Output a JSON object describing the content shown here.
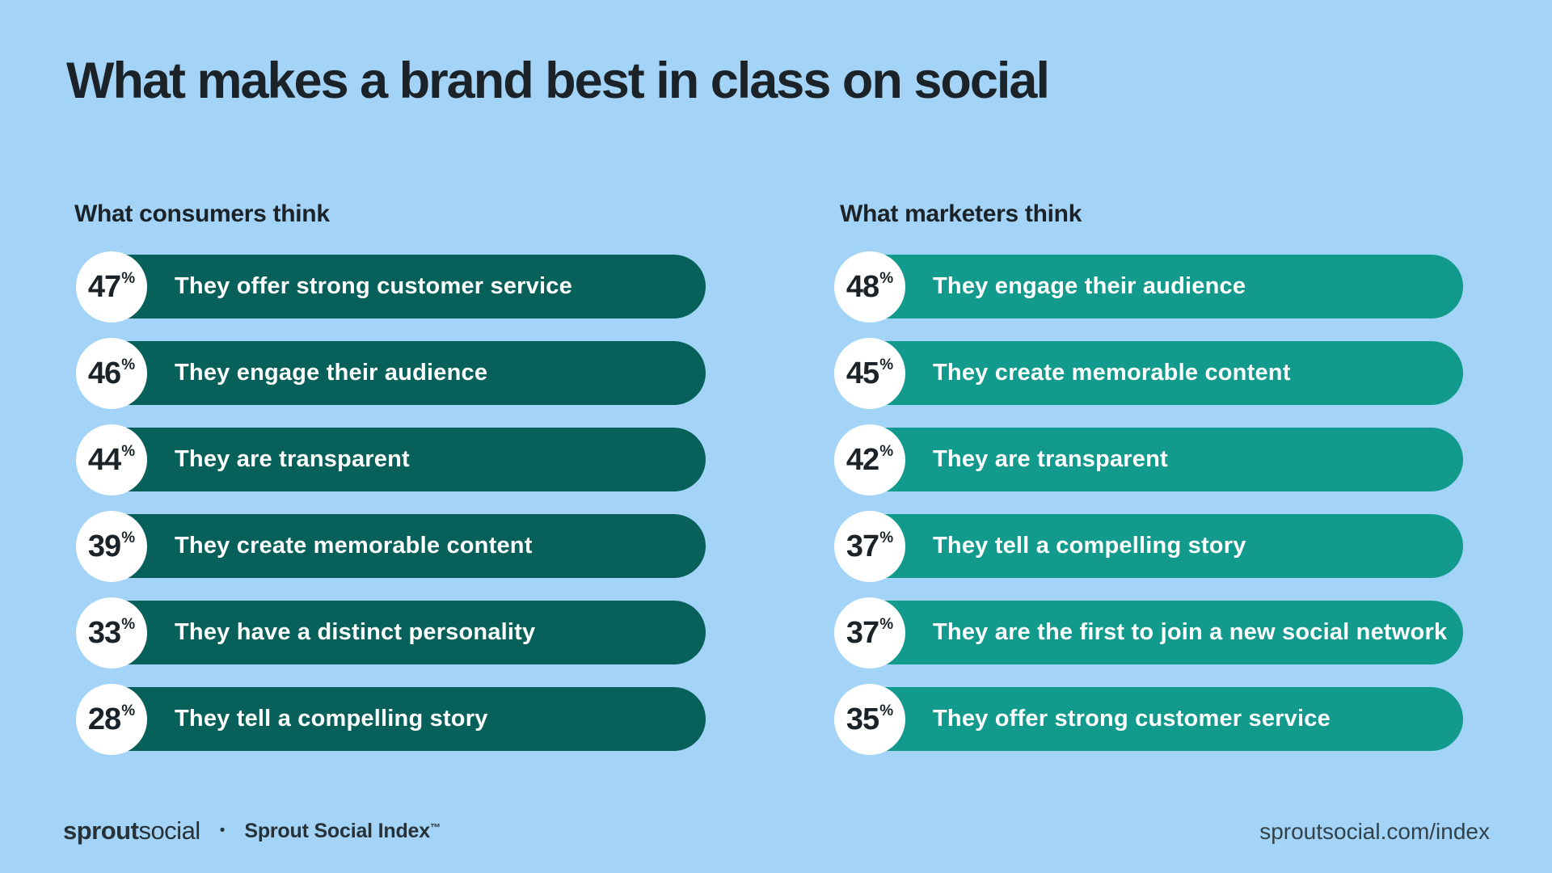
{
  "colors": {
    "bg": "#A3D3F7",
    "ink": "#1B2328",
    "bar_dark": "#07615A",
    "bar_light": "#129A8C",
    "footer_ink": "#263238",
    "url_ink": "#31424B"
  },
  "header": {
    "title": "What makes a brand best in class on social"
  },
  "percent_symbol": "%",
  "columns": [
    {
      "heading": "What consumers think",
      "items": [
        {
          "value": "47",
          "label": "They offer strong customer service"
        },
        {
          "value": "46",
          "label": "They engage their audience"
        },
        {
          "value": "44",
          "label": "They are transparent"
        },
        {
          "value": "39",
          "label": "They create memorable content"
        },
        {
          "value": "33",
          "label": "They have a distinct personality"
        },
        {
          "value": "28",
          "label": "They tell a compelling story"
        }
      ]
    },
    {
      "heading": "What marketers think",
      "items": [
        {
          "value": "48",
          "label": "They engage their audience"
        },
        {
          "value": "45",
          "label": "They create memorable content"
        },
        {
          "value": "42",
          "label": "They are transparent"
        },
        {
          "value": "37",
          "label": "They tell a compelling story"
        },
        {
          "value": "37",
          "label": "They are the first to join a new social network"
        },
        {
          "value": "35",
          "label": "They offer strong customer service"
        }
      ]
    }
  ],
  "chart_data": [
    {
      "type": "bar",
      "title": "What consumers think",
      "categories": [
        "They offer strong customer service",
        "They engage their audience",
        "They are transparent",
        "They create memorable content",
        "They have a distinct personality",
        "They tell a compelling story"
      ],
      "values": [
        47,
        46,
        44,
        39,
        33,
        28
      ],
      "unit": "%",
      "bar_color": "#07615A",
      "layout": "horizontal pill bars of equal visual length, white circular value badge at left of each bar"
    },
    {
      "type": "bar",
      "title": "What marketers think",
      "categories": [
        "They engage their audience",
        "They create memorable content",
        "They are transparent",
        "They tell a compelling story",
        "They are the first to join a new social network",
        "They offer strong customer service"
      ],
      "values": [
        48,
        45,
        42,
        37,
        37,
        35
      ],
      "unit": "%",
      "bar_color": "#129A8C",
      "layout": "horizontal pill bars of equal visual length, white circular value badge at left of each bar"
    }
  ],
  "footer": {
    "logo_bold": "sprout",
    "logo_light": "social",
    "separator": "•",
    "index_label": "Sprout Social Index",
    "index_tm": "™",
    "url": "sproutsocial.com/index"
  }
}
